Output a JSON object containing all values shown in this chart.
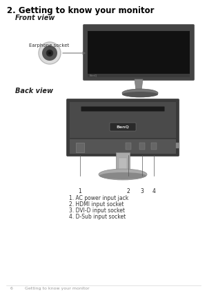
{
  "title": "2. Getting to know your monitor",
  "section1": "Front view",
  "section2": "Back view",
  "earphone_label": "Earphone socket",
  "items": [
    "1. AC power input jack",
    "2. HDMI input socket",
    "3. DVI-D input socket",
    "4. D-Sub input socket"
  ],
  "footer_page": "6",
  "footer_text": "Getting to know your monitor",
  "bg_color": "#ffffff",
  "title_color": "#000000",
  "section_color": "#222222",
  "text_color": "#333333",
  "footer_color": "#999999",
  "num_labels": [
    "1",
    "2",
    "3",
    "4"
  ]
}
